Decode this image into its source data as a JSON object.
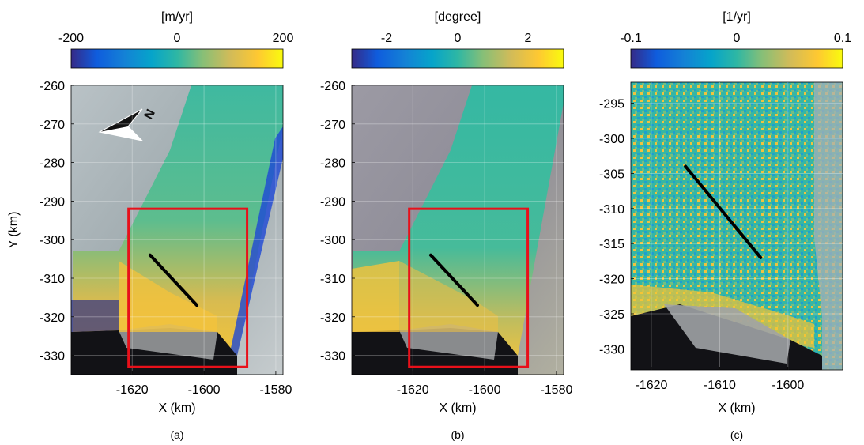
{
  "chart_data": [
    {
      "type": "heatmap",
      "panel_label": "(a)",
      "colorbar": {
        "label": "[m/yr]",
        "ticks": [
          "-200",
          "0",
          "200"
        ],
        "range": [
          -250,
          250
        ],
        "colormap": "parula"
      },
      "xlabel": "X (km)",
      "ylabel": "Y (km)",
      "xlim": [
        -1637,
        -1578
      ],
      "ylim": [
        -335,
        -260
      ],
      "xticks": [
        "-1620",
        "-1600",
        "-1580"
      ],
      "yticks": [
        "-260",
        "-270",
        "-280",
        "-290",
        "-300",
        "-310",
        "-320",
        "-330"
      ],
      "red_box": {
        "x": [
          -1621,
          -1588
        ],
        "y": [
          -333,
          -292
        ]
      },
      "profile_line": {
        "x": [
          -1615,
          -1602
        ],
        "y": [
          -304,
          -317
        ]
      },
      "north_arrow": "N"
    },
    {
      "type": "heatmap",
      "panel_label": "(b)",
      "colorbar": {
        "label": "[degree]",
        "ticks": [
          "-2",
          "0",
          "2"
        ],
        "range": [
          -3,
          3
        ],
        "colormap": "parula"
      },
      "xlabel": "X (km)",
      "ylabel": "",
      "xlim": [
        -1637,
        -1578
      ],
      "ylim": [
        -335,
        -260
      ],
      "xticks": [
        "-1620",
        "-1600",
        "-1580"
      ],
      "yticks": [
        "-260",
        "-270",
        "-280",
        "-290",
        "-300",
        "-310",
        "-320",
        "-330"
      ],
      "red_box": {
        "x": [
          -1621,
          -1588
        ],
        "y": [
          -333,
          -292
        ]
      },
      "profile_line": {
        "x": [
          -1615,
          -1602
        ],
        "y": [
          -304,
          -317
        ]
      }
    },
    {
      "type": "heatmap",
      "panel_label": "(c)",
      "colorbar": {
        "label": "[1/yr]",
        "ticks": [
          "-0.1",
          "0",
          "0.1"
        ],
        "range": [
          -0.12,
          0.12
        ],
        "colormap": "parula"
      },
      "xlabel": "X (km)",
      "ylabel": "",
      "xlim": [
        -1623,
        -1592
      ],
      "ylim": [
        -333,
        -292
      ],
      "xticks": [
        "-1620",
        "-1610",
        "-1600"
      ],
      "yticks": [
        "-295",
        "-300",
        "-305",
        "-310",
        "-315",
        "-320",
        "-325",
        "-330"
      ],
      "profile_line": {
        "x": [
          -1615,
          -1604
        ],
        "y": [
          -304,
          -317
        ]
      }
    }
  ]
}
